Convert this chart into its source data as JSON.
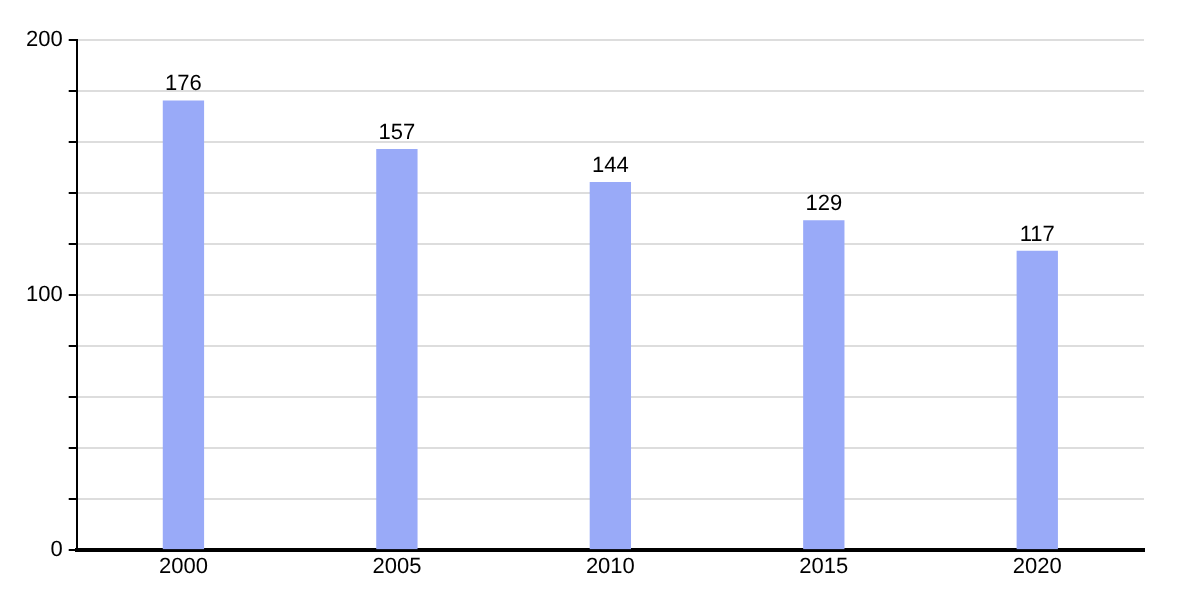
{
  "chart_data": {
    "type": "bar",
    "categories": [
      "2000",
      "2005",
      "2010",
      "2015",
      "2020"
    ],
    "values": [
      176,
      157,
      144,
      129,
      117
    ],
    "color": "#99aaf8",
    "ylim": [
      0,
      200
    ],
    "yticks": [
      0,
      {
        "value": 20,
        "label": null
      },
      {
        "value": 40,
        "label": null
      },
      {
        "value": 60,
        "label": null
      },
      {
        "value": 80,
        "label": null
      },
      100,
      {
        "value": 120,
        "label": null
      },
      {
        "value": 140,
        "label": null
      },
      {
        "value": 160,
        "label": null
      },
      {
        "value": 180,
        "label": null
      },
      200
    ],
    "grid": "y",
    "data_labels": true
  }
}
